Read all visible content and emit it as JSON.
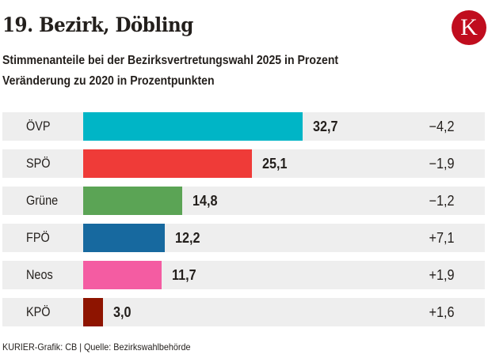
{
  "header": {
    "title": "19. Bezirk, Döbling",
    "logo_letter": "K",
    "subtitle_line1": "Stimmenanteile bei der Bezirksvertretungswahl 2025 in Prozent",
    "subtitle_line2": "Veränderung zu 2020 in Prozentpunkten"
  },
  "footer": {
    "credit": "KURIER-Grafik: CB | Quelle: Bezirkswahlbehörde"
  },
  "chart_data": {
    "type": "bar",
    "orientation": "horizontal",
    "title": "19. Bezirk, Döbling",
    "subtitle": "Stimmenanteile bei der Bezirksvertretungswahl 2025 in Prozent / Veränderung zu 2020 in Prozentpunkten",
    "xlabel": "",
    "ylabel": "",
    "xlim": [
      0,
      32.7
    ],
    "grid": false,
    "legend": "none",
    "categories": [
      "ÖVP",
      "SPÖ",
      "Grüne",
      "FPÖ",
      "Neos",
      "KPÖ"
    ],
    "values": [
      32.7,
      25.1,
      14.8,
      12.2,
      11.7,
      3.0
    ],
    "value_labels": [
      "32,7",
      "25,1",
      "14,8",
      "12,2",
      "11,7",
      "3,0"
    ],
    "changes": [
      -4.2,
      -1.9,
      -1.2,
      7.1,
      1.9,
      1.6
    ],
    "change_labels": [
      "−4,2",
      "−1,9",
      "−1,2",
      "+7,1",
      "+1,9",
      "+1,6"
    ],
    "colors": [
      "#00b5c6",
      "#ef3b38",
      "#5ba455",
      "#17699f",
      "#f45ca2",
      "#8e1400"
    ]
  }
}
